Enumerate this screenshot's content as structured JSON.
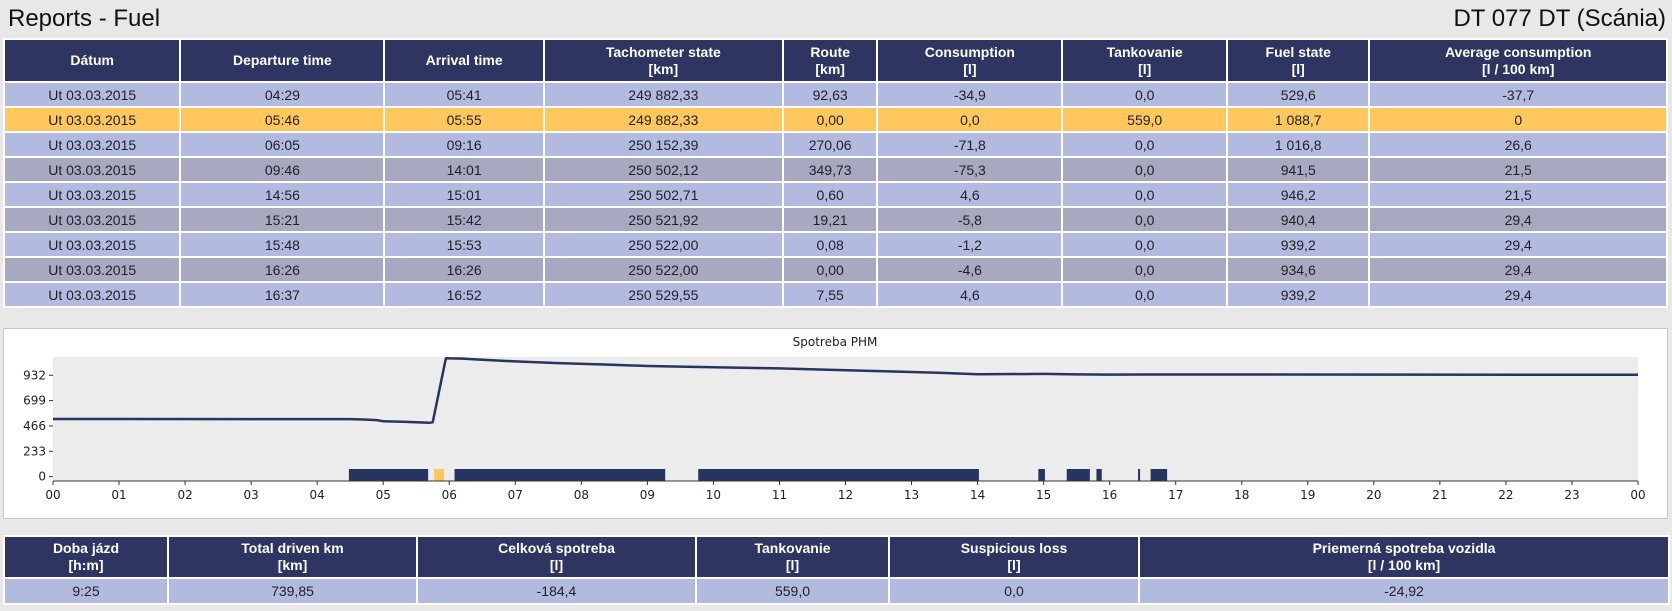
{
  "header": {
    "title": "Reports - Fuel",
    "vehicle": "DT 077 DT (Scánia)"
  },
  "main_table": {
    "columns": [
      {
        "name": "Dátum",
        "unit": ""
      },
      {
        "name": "Departure time",
        "unit": ""
      },
      {
        "name": "Arrival time",
        "unit": ""
      },
      {
        "name": "Tachometer state",
        "unit": "[km]"
      },
      {
        "name": "Route",
        "unit": "[km]"
      },
      {
        "name": "Consumption",
        "unit": "[l]"
      },
      {
        "name": "Tankovanie",
        "unit": "[l]"
      },
      {
        "name": "Fuel state",
        "unit": "[l]"
      },
      {
        "name": "Average consumption",
        "unit": "[l / 100 km]"
      }
    ],
    "rows": [
      [
        "Ut 03.03.2015",
        "04:29",
        "05:41",
        "249 882,33",
        "92,63",
        "-34,9",
        "0,0",
        "529,6",
        "-37,7"
      ],
      [
        "Ut 03.03.2015",
        "05:46",
        "05:55",
        "249 882,33",
        "0,00",
        "0,0",
        "559,0",
        "1 088,7",
        "0"
      ],
      [
        "Ut 03.03.2015",
        "06:05",
        "09:16",
        "250 152,39",
        "270,06",
        "-71,8",
        "0,0",
        "1 016,8",
        "26,6"
      ],
      [
        "Ut 03.03.2015",
        "09:46",
        "14:01",
        "250 502,12",
        "349,73",
        "-75,3",
        "0,0",
        "941,5",
        "21,5"
      ],
      [
        "Ut 03.03.2015",
        "14:56",
        "15:01",
        "250 502,71",
        "0,60",
        "4,6",
        "0,0",
        "946,2",
        "21,5"
      ],
      [
        "Ut 03.03.2015",
        "15:21",
        "15:42",
        "250 521,92",
        "19,21",
        "-5,8",
        "0,0",
        "940,4",
        "29,4"
      ],
      [
        "Ut 03.03.2015",
        "15:48",
        "15:53",
        "250 522,00",
        "0,08",
        "-1,2",
        "0,0",
        "939,2",
        "29,4"
      ],
      [
        "Ut 03.03.2015",
        "16:26",
        "16:26",
        "250 522,00",
        "0,00",
        "-4,6",
        "0,0",
        "934,6",
        "29,4"
      ],
      [
        "Ut 03.03.2015",
        "16:37",
        "16:52",
        "250 529,55",
        "7,55",
        "4,6",
        "0,0",
        "939,2",
        "29,4"
      ]
    ],
    "row_styles": [
      "light",
      "highlight",
      "light",
      "dark",
      "light",
      "dark",
      "light",
      "dark",
      "light"
    ]
  },
  "chart_data": {
    "type": "line",
    "title": "Spotreba PHM",
    "xlabel": "",
    "ylabel": "",
    "xlim": [
      0,
      24
    ],
    "ylim": [
      -40,
      1100
    ],
    "x_ticks": [
      "00",
      "01",
      "02",
      "03",
      "04",
      "05",
      "06",
      "07",
      "08",
      "09",
      "10",
      "11",
      "12",
      "13",
      "14",
      "15",
      "16",
      "17",
      "18",
      "19",
      "20",
      "21",
      "22",
      "23",
      "00"
    ],
    "y_ticks": [
      0,
      233,
      466,
      699,
      932
    ],
    "grid": false,
    "series": [
      {
        "color": "#283460",
        "x": [
          0,
          4.5,
          4.7,
          4.9,
          5.0,
          5.3,
          5.5,
          5.7,
          5.75,
          5.95,
          6.2,
          6.5,
          7.0,
          7.6,
          8.4,
          9.0,
          10.0,
          11.0,
          11.6,
          12.5,
          13.4,
          14.0,
          15.0,
          15.5,
          16.0,
          17.0,
          24
        ],
        "y": [
          530,
          529,
          525,
          520,
          510,
          505,
          500,
          495,
          500,
          1088,
          1085,
          1075,
          1060,
          1045,
          1030,
          1017,
          1005,
          995,
          985,
          970,
          955,
          941,
          945,
          940,
          938,
          939,
          936
        ]
      }
    ],
    "activity_bars": [
      {
        "start": 4.48,
        "end": 5.68,
        "color": "#283460"
      },
      {
        "start": 5.77,
        "end": 5.92,
        "color": "#ffc75e"
      },
      {
        "start": 6.08,
        "end": 9.27,
        "color": "#283460"
      },
      {
        "start": 9.77,
        "end": 14.02,
        "color": "#283460"
      },
      {
        "start": 14.92,
        "end": 15.02,
        "color": "#283460"
      },
      {
        "start": 15.35,
        "end": 15.7,
        "color": "#283460"
      },
      {
        "start": 15.8,
        "end": 15.88,
        "color": "#283460"
      },
      {
        "start": 16.43,
        "end": 16.46,
        "color": "#283460"
      },
      {
        "start": 16.62,
        "end": 16.87,
        "color": "#283460"
      }
    ]
  },
  "summary_table": {
    "columns": [
      {
        "name": "Doba jázd",
        "unit": "[h:m]"
      },
      {
        "name": "Total driven km",
        "unit": "[km]"
      },
      {
        "name": "Celková spotreba",
        "unit": "[l]"
      },
      {
        "name": "Tankovanie",
        "unit": "[l]"
      },
      {
        "name": "Suspicious loss",
        "unit": "[l]"
      },
      {
        "name": "Priemerná spotreba vozidla",
        "unit": "[l / 100 km]"
      }
    ],
    "row": [
      "9:25",
      "739,85",
      "-184,4",
      "559,0",
      "0,0",
      "-24,92"
    ]
  },
  "colors": {
    "header_bg": "#2d3560",
    "row_light": "#b3bae0",
    "row_dark": "#a6a9c0",
    "row_highlight": "#ffc75e",
    "line": "#283460"
  }
}
